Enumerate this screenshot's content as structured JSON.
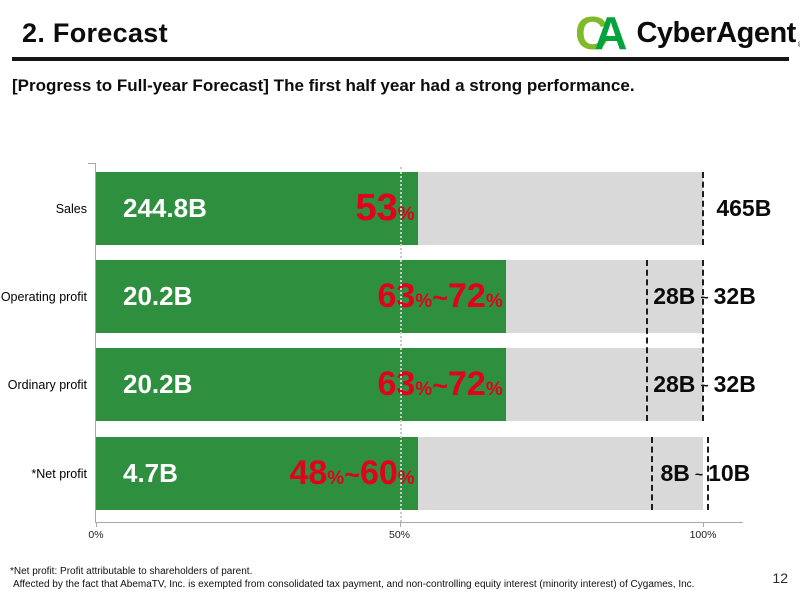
{
  "header": {
    "title": "2. Forecast",
    "subtitle": "[Progress to Full-year Forecast]  The first half year had a strong performance."
  },
  "logo": {
    "mark_c": "C",
    "mark_a": "A",
    "name": "CyberAgent",
    "registered": "®",
    "c_color": "#7fba28",
    "a_color": "#00a33e"
  },
  "colors": {
    "progress_green": "#2e8f3e",
    "percent_red": "#e3001f",
    "forecast_gray": "#d9d9d9",
    "axis_gray": "#a8a8a8",
    "guide_black": "#1c1c1c"
  },
  "chart_data": {
    "type": "bar",
    "orientation": "horizontal",
    "x_axis": {
      "ticks": [
        "0%",
        "50%",
        "100%"
      ],
      "min": 0,
      "max": 100,
      "unit": "%"
    },
    "grid": {
      "dotted_line_at_pct": 50
    },
    "rows": [
      {
        "category": "Sales",
        "value": "244.8B",
        "value_num": 244.8,
        "pct_low": "53",
        "pct_unit": "%",
        "progress_pct": 53,
        "forecast_low": "465B",
        "forecast_num": 465
      },
      {
        "category": "Operating profit",
        "value": "20.2B",
        "value_num": 20.2,
        "pct_low": "63",
        "pct_unit": "%",
        "pct_tilde": "~",
        "pct_high": "72",
        "pct_high_unit": "%",
        "progress_pct_min": 63,
        "progress_pct_max": 72,
        "forecast_low": "28B",
        "forecast_tilde": "~",
        "forecast_high": "32B",
        "forecast_min": 28,
        "forecast_max": 32
      },
      {
        "category": "Ordinary profit",
        "value": "20.2B",
        "value_num": 20.2,
        "pct_low": "63",
        "pct_unit": "%",
        "pct_tilde": "~",
        "pct_high": "72",
        "pct_high_unit": "%",
        "progress_pct_min": 63,
        "progress_pct_max": 72,
        "forecast_low": "28B",
        "forecast_tilde": "~",
        "forecast_high": "32B",
        "forecast_min": 28,
        "forecast_max": 32
      },
      {
        "category": "*Net profit",
        "value": "4.7B",
        "value_num": 4.7,
        "pct_low": "48",
        "pct_unit": "%",
        "pct_tilde": "~",
        "pct_high": "60",
        "pct_high_unit": "%",
        "progress_pct_min": 48,
        "progress_pct_max": 60,
        "forecast_low": "8B",
        "forecast_tilde": "~",
        "forecast_high": "10B",
        "forecast_min": 8,
        "forecast_max": 10
      }
    ],
    "layout": {
      "green_pct": [
        53,
        67.5,
        67.5,
        53
      ],
      "label_left_pct": [
        102.2,
        91.8,
        91.8,
        93.0
      ],
      "guides": {
        "sales_100": 99.9,
        "range23_low": 90.6,
        "range23_high": 99.9,
        "range4_low": 91.4,
        "range4_high": 100.6
      }
    }
  },
  "footnotes": {
    "line1": "*Net profit: Profit attributable to shareholders of parent.",
    "line2": "Affected by the fact that AbemaTV, Inc. is exempted from consolidated tax payment, and non-controlling equity interest (minority interest) of Cygames, Inc."
  },
  "page_number": "12"
}
